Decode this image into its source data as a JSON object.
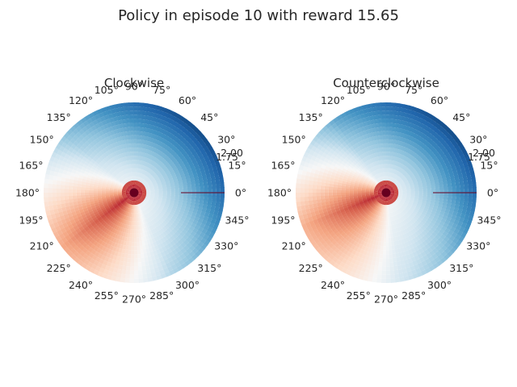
{
  "figure": {
    "title": "Policy in episode 10 with reward 15.65"
  },
  "chart_data": [
    {
      "type": "heatmap",
      "projection": "polar",
      "title": "Clockwise",
      "colormap": "RdBu_r",
      "theta_ticks": [
        "0°",
        "15°",
        "30°",
        "45°",
        "60°",
        "75°",
        "90°",
        "105°",
        "120°",
        "135°",
        "150°",
        "165°",
        "180°",
        "195°",
        "210°",
        "225°",
        "240°",
        "255°",
        "270°",
        "285°",
        "300°",
        "315°",
        "330°",
        "345°"
      ],
      "r_ticks": [
        "2.00",
        "1.75"
      ],
      "grid": false,
      "colors": {
        "low": "#053061",
        "mid": "#f7f7f7",
        "high": "#67001f"
      },
      "center_value": "high",
      "high_region_angle_deg": [
        165,
        270
      ]
    },
    {
      "type": "heatmap",
      "projection": "polar",
      "title": "Counterclockwise",
      "colormap": "RdBu_r",
      "theta_ticks": [
        "0°",
        "15°",
        "30°",
        "45°",
        "60°",
        "75°",
        "90°",
        "105°",
        "120°",
        "135°",
        "150°",
        "165°",
        "180°",
        "195°",
        "210°",
        "225°",
        "240°",
        "255°",
        "270°",
        "285°",
        "300°",
        "315°",
        "330°",
        "345°"
      ],
      "r_ticks": [
        "2.00",
        "1.75"
      ],
      "grid": false,
      "colors": {
        "low": "#053061",
        "mid": "#f7f7f7",
        "high": "#67001f"
      },
      "center_value": "high",
      "high_region_angle_deg": [
        150,
        255
      ]
    }
  ]
}
